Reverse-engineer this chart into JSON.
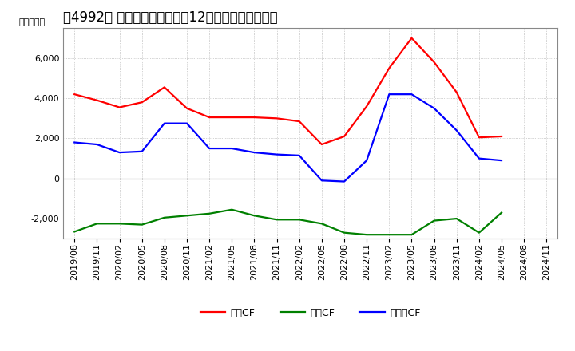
{
  "title": "［4992］ キャッシュフローの12か月移動合計の推移",
  "ylabel": "（百万円）",
  "x_labels": [
    "2019/08",
    "2019/11",
    "2020/02",
    "2020/05",
    "2020/08",
    "2020/11",
    "2021/02",
    "2021/05",
    "2021/08",
    "2021/11",
    "2022/02",
    "2022/05",
    "2022/08",
    "2022/11",
    "2023/02",
    "2023/05",
    "2023/08",
    "2023/11",
    "2024/02",
    "2024/05",
    "2024/08",
    "2024/11"
  ],
  "operating_cf": [
    4200,
    3900,
    3550,
    3800,
    4550,
    3500,
    3050,
    3050,
    3050,
    3000,
    2850,
    1700,
    2100,
    3600,
    5500,
    7000,
    5800,
    4300,
    2050,
    2100,
    null,
    null
  ],
  "investing_cf": [
    -2650,
    -2250,
    -2250,
    -2300,
    -1950,
    -1850,
    -1750,
    -1550,
    -1850,
    -2050,
    -2050,
    -2250,
    -2700,
    -2800,
    -2800,
    -2800,
    -2100,
    -2000,
    -2700,
    -1700,
    null,
    null
  ],
  "free_cf": [
    1800,
    1700,
    1300,
    1350,
    2750,
    2750,
    1500,
    1500,
    1300,
    1200,
    1150,
    -100,
    -150,
    900,
    4200,
    4200,
    3500,
    2400,
    1000,
    900,
    null,
    null
  ],
  "legend_operating": "営業CF",
  "legend_investing": "投資CF",
  "legend_free": "フリーCF",
  "operating_color": "#ff0000",
  "investing_color": "#008000",
  "free_color": "#0000ff",
  "bg_color": "#ffffff",
  "plot_bg_color": "#ffffff",
  "grid_color": "#aaaaaa",
  "ylim": [
    -3000,
    7500
  ],
  "yticks": [
    -2000,
    0,
    2000,
    4000,
    6000
  ],
  "title_fontsize": 12,
  "label_fontsize": 8,
  "legend_fontsize": 9
}
